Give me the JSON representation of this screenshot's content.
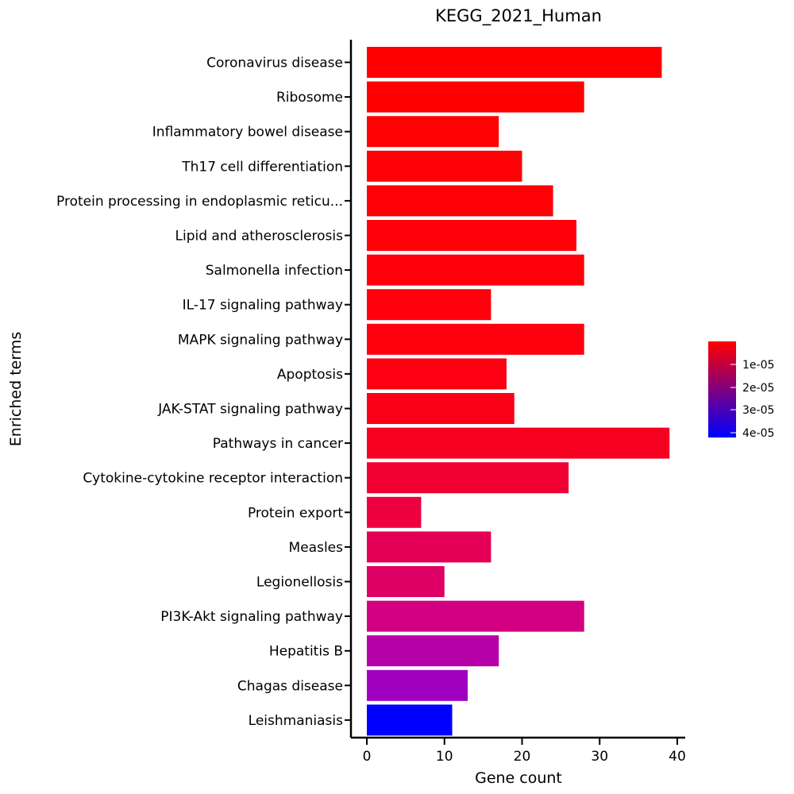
{
  "chart_data": {
    "type": "bar",
    "orientation": "horizontal",
    "title": "KEGG_2021_Human",
    "xlabel": "Gene count",
    "ylabel": "Enriched terms",
    "xlim": [
      0,
      40
    ],
    "xticks": [
      0,
      10,
      20,
      30,
      40
    ],
    "categories": [
      "Coronavirus disease",
      "Ribosome",
      "Inflammatory bowel disease",
      "Th17 cell differentiation",
      "Protein processing in endoplasmic reticu...",
      "Lipid and atherosclerosis",
      "Salmonella infection",
      "IL-17 signaling pathway",
      "MAPK signaling pathway",
      "Apoptosis",
      "JAK-STAT signaling pathway",
      "Pathways in cancer",
      "Cytokine-cytokine receptor interaction",
      "Protein export",
      "Measles",
      "Legionellosis",
      "PI3K-Akt signaling pathway",
      "Hepatitis B",
      "Chagas disease",
      "Leishmaniasis"
    ],
    "values": [
      38,
      28,
      17,
      20,
      24,
      27,
      28,
      16,
      28,
      18,
      19,
      39,
      26,
      7,
      16,
      10,
      28,
      17,
      13,
      11
    ],
    "colors": [
      "#ff0000",
      "#ff0000",
      "#ff0003",
      "#ff0004",
      "#ff0006",
      "#ff0008",
      "#ff000a",
      "#ff000c",
      "#ff000e",
      "#fc0012",
      "#fa0016",
      "#f60020",
      "#f00032",
      "#ec0040",
      "#e40054",
      "#de0064",
      "#d20080",
      "#b600a8",
      "#a000c0",
      "#0000ff"
    ],
    "colorbar": {
      "gradient_top": "#ff0000",
      "gradient_bottom": "#0000ff",
      "tick_labels": [
        "1e-05",
        "2e-05",
        "3e-05",
        "4e-05"
      ]
    },
    "grid": false,
    "legend": "colorbar-right"
  }
}
